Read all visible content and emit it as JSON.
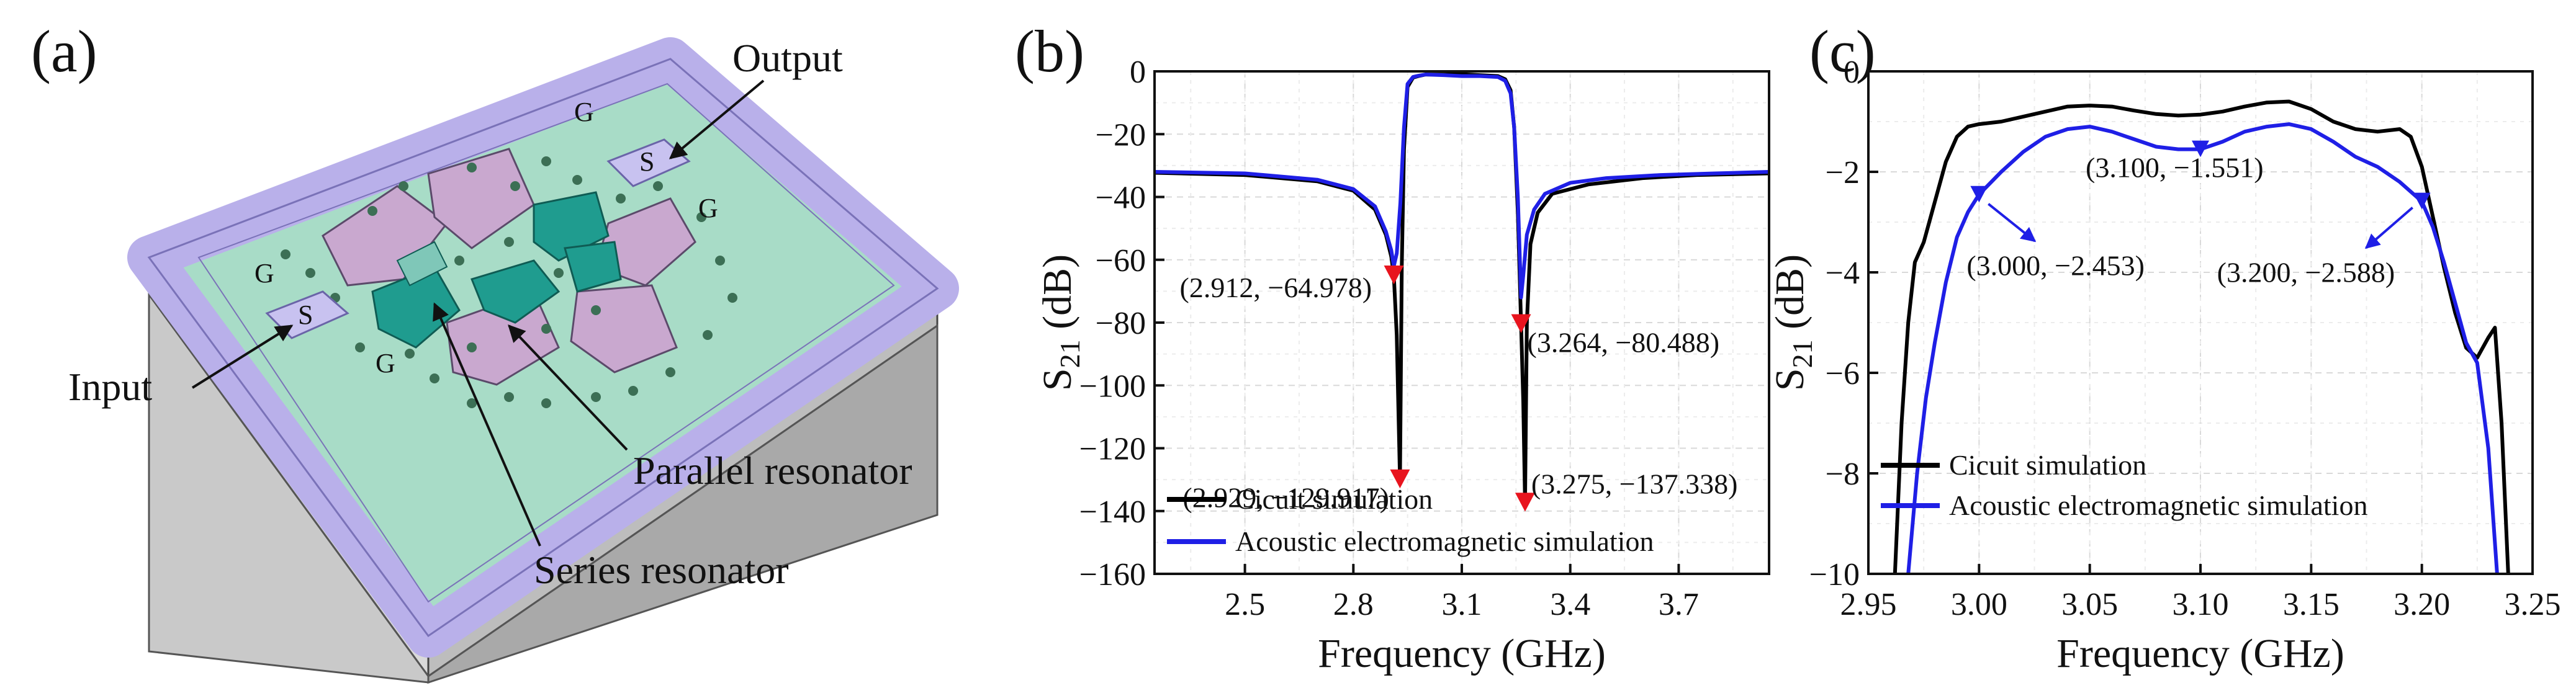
{
  "panel_a": {
    "label": "(a)",
    "callouts": {
      "output": "Output",
      "input": "Input",
      "parallel": "Parallel resonator",
      "series": "Series resonator"
    },
    "pad_labels": {
      "ground": "G",
      "signal": "S"
    }
  },
  "chart_data": [
    {
      "id": "b",
      "panel_label": "(b)",
      "type": "line",
      "xlabel": "Frequency (GHz)",
      "ylabel_main": "S",
      "ylabel_sub": "21",
      "ylabel_unit": " (dB)",
      "xlim": [
        2.25,
        3.95
      ],
      "ylim": [
        -160,
        0
      ],
      "xticks": [
        "2.5",
        "2.8",
        "3.1",
        "3.4",
        "3.7"
      ],
      "yticks": [
        "0",
        "-20",
        "-40",
        "-60",
        "-80",
        "-100",
        "-120",
        "-140",
        "-160"
      ],
      "grid": true,
      "legend_position": "bottom-left",
      "series": [
        {
          "name": "Cicuit simulation",
          "color": "#000000",
          "x": [
            2.25,
            2.5,
            2.7,
            2.8,
            2.86,
            2.89,
            2.905,
            2.912,
            2.92,
            2.929,
            2.934,
            2.94,
            2.95,
            2.965,
            2.98,
            3.0,
            3.05,
            3.1,
            3.15,
            3.2,
            3.22,
            3.235,
            3.245,
            3.255,
            3.264,
            3.27,
            3.275,
            3.28,
            3.29,
            3.31,
            3.35,
            3.45,
            3.6,
            3.75,
            3.95
          ],
          "y": [
            -32.3,
            -33,
            -35,
            -38,
            -44,
            -52,
            -59,
            -65,
            -84,
            -129.9,
            -62,
            -25,
            -5,
            -2,
            -1.5,
            -1,
            -1,
            -0.9,
            -1.2,
            -1.5,
            -2.5,
            -6,
            -18,
            -45,
            -80.5,
            -105,
            -137.3,
            -80,
            -55,
            -45,
            -39,
            -36,
            -34,
            -33,
            -32.5
          ]
        },
        {
          "name": "Acoustic electromagnetic simulation",
          "color": "#1f1fe6",
          "x": [
            2.25,
            2.5,
            2.7,
            2.8,
            2.86,
            2.89,
            2.905,
            2.912,
            2.92,
            2.93,
            2.94,
            2.95,
            2.965,
            2.98,
            3.0,
            3.05,
            3.1,
            3.15,
            3.2,
            3.22,
            3.235,
            3.245,
            3.255,
            3.264,
            3.27,
            3.28,
            3.3,
            3.33,
            3.4,
            3.5,
            3.65,
            3.8,
            3.95
          ],
          "y": [
            -32,
            -32.5,
            -34.5,
            -37.5,
            -43,
            -51,
            -57,
            -62,
            -58,
            -42,
            -18,
            -4,
            -1.8,
            -1.4,
            -1,
            -1.2,
            -1.5,
            -1.5,
            -1.8,
            -3,
            -7,
            -18,
            -40,
            -72,
            -65,
            -52,
            -44,
            -39,
            -35.5,
            -34,
            -33,
            -32.5,
            -32
          ]
        }
      ],
      "markers": [
        {
          "x": 2.912,
          "y": -64.978,
          "text": "(2.912, −64.978)"
        },
        {
          "x": 2.929,
          "y": -129.917,
          "text": "(2.929, −129.917)"
        },
        {
          "x": 3.264,
          "y": -80.488,
          "text": "(3.264, −80.488)"
        },
        {
          "x": 3.275,
          "y": -137.338,
          "text": "(3.275, −137.338)"
        }
      ],
      "marker_color": "#e8141e"
    },
    {
      "id": "c",
      "panel_label": "(c)",
      "type": "line",
      "xlabel": "Frequency (GHz)",
      "ylabel_main": "S",
      "ylabel_sub": "21",
      "ylabel_unit": " (dB)",
      "xlim": [
        2.95,
        3.25
      ],
      "ylim": [
        -10,
        0
      ],
      "xticks": [
        "2.95",
        "3.00",
        "3.05",
        "3.10",
        "3.15",
        "3.20",
        "3.25"
      ],
      "yticks": [
        "0",
        "-2",
        "-4",
        "-6",
        "-8",
        "-10"
      ],
      "grid": true,
      "legend_position": "bottom-left",
      "series": [
        {
          "name": "Cicuit simulation",
          "color": "#000000",
          "x": [
            2.962,
            2.965,
            2.968,
            2.971,
            2.975,
            2.98,
            2.985,
            2.99,
            2.995,
            3.0,
            3.01,
            3.02,
            3.03,
            3.04,
            3.05,
            3.06,
            3.07,
            3.08,
            3.09,
            3.1,
            3.11,
            3.12,
            3.13,
            3.14,
            3.15,
            3.16,
            3.17,
            3.18,
            3.19,
            3.195,
            3.2,
            3.205,
            3.21,
            3.215,
            3.22,
            3.225,
            3.23,
            3.233,
            3.236,
            3.239
          ],
          "y": [
            -10,
            -7,
            -5,
            -3.8,
            -3.4,
            -2.6,
            -1.8,
            -1.3,
            -1.1,
            -1.05,
            -1.0,
            -0.9,
            -0.8,
            -0.7,
            -0.68,
            -0.7,
            -0.78,
            -0.85,
            -0.88,
            -0.86,
            -0.8,
            -0.7,
            -0.62,
            -0.6,
            -0.75,
            -1.0,
            -1.15,
            -1.2,
            -1.15,
            -1.3,
            -1.9,
            -2.9,
            -3.9,
            -4.8,
            -5.5,
            -5.7,
            -5.3,
            -5.1,
            -7,
            -10
          ]
        },
        {
          "name": "Acoustic electromagnetic simulation",
          "color": "#1f1fe6",
          "x": [
            2.968,
            2.972,
            2.976,
            2.98,
            2.985,
            2.99,
            2.995,
            3.0,
            3.01,
            3.02,
            3.03,
            3.04,
            3.05,
            3.06,
            3.07,
            3.08,
            3.09,
            3.1,
            3.11,
            3.12,
            3.13,
            3.14,
            3.15,
            3.16,
            3.17,
            3.18,
            3.19,
            3.2,
            3.205,
            3.21,
            3.215,
            3.22,
            3.225,
            3.23,
            3.234
          ],
          "y": [
            -10,
            -8,
            -6.5,
            -5.4,
            -4.2,
            -3.3,
            -2.8,
            -2.45,
            -2.0,
            -1.6,
            -1.3,
            -1.15,
            -1.1,
            -1.2,
            -1.35,
            -1.5,
            -1.55,
            -1.55,
            -1.4,
            -1.2,
            -1.1,
            -1.05,
            -1.15,
            -1.4,
            -1.7,
            -1.9,
            -2.2,
            -2.59,
            -3.1,
            -3.8,
            -4.6,
            -5.4,
            -5.8,
            -7.5,
            -10
          ]
        }
      ],
      "markers": [
        {
          "x": 3.0,
          "y": -2.453,
          "text": "(3.000, −2.453)"
        },
        {
          "x": 3.1,
          "y": -1.551,
          "text": "(3.100, −1.551)"
        },
        {
          "x": 3.2,
          "y": -2.588,
          "text": "(3.200, −2.588)"
        }
      ],
      "marker_color": "#1f1fe6"
    }
  ]
}
